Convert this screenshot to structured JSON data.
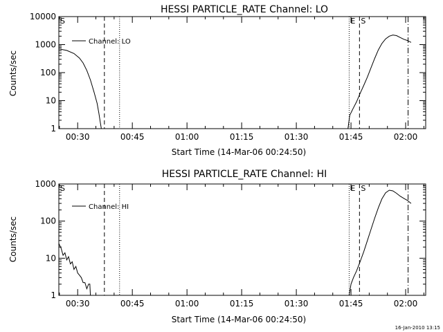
{
  "chart_data": [
    {
      "type": "line",
      "title": "HESSI PARTICLE_RATE Channel: LO",
      "xlabel": "Start Time (14-Mar-06 00:24:50)",
      "ylabel": "Counts/sec",
      "y_scale": "log",
      "ylim": [
        1,
        10000
      ],
      "xlim": [
        "00:24:50",
        "02:05:30"
      ],
      "x_tick_labels": [
        "00:30",
        "00:45",
        "01:00",
        "01:15",
        "01:30",
        "01:45",
        "02:00"
      ],
      "y_tick_labels": [
        "1",
        "10",
        "100",
        "1000",
        "10000"
      ],
      "legend": {
        "placement": "top-left",
        "entries": [
          "Channel: LO"
        ]
      },
      "markers": [
        {
          "time": "00:24:50",
          "style": "dashed",
          "label": "S"
        },
        {
          "time": "00:37:20",
          "style": "dashed",
          "label": ""
        },
        {
          "time": "00:41:30",
          "style": "dotted",
          "label": ""
        },
        {
          "time": "01:44:30",
          "style": "dotted",
          "label": "E"
        },
        {
          "time": "01:47:20",
          "style": "dashed",
          "label": "S"
        },
        {
          "time": "02:00:40",
          "style": "dashdot",
          "label": ""
        }
      ],
      "series": [
        {
          "name": "Channel: LO",
          "segments": [
            [
              [
                "00:24:50",
                700
              ],
              [
                "00:27:00",
                620
              ],
              [
                "00:29:00",
                480
              ],
              [
                "00:30:30",
                330
              ],
              [
                "00:31:30",
                220
              ],
              [
                "00:32:30",
                120
              ],
              [
                "00:33:30",
                55
              ],
              [
                "00:34:30",
                20
              ],
              [
                "00:35:20",
                8
              ],
              [
                "00:35:50",
                3.5
              ],
              [
                "00:36:10",
                1.8
              ],
              [
                "00:36:30",
                1
              ]
            ],
            [
              [
                "01:44:10",
                1
              ],
              [
                "01:44:40",
                3
              ],
              [
                "01:45:30",
                5
              ],
              [
                "01:46:30",
                9
              ],
              [
                "01:47:30",
                18
              ],
              [
                "01:48:30",
                35
              ],
              [
                "01:49:30",
                70
              ],
              [
                "01:50:30",
                150
              ],
              [
                "01:51:30",
                320
              ],
              [
                "01:52:30",
                650
              ],
              [
                "01:53:30",
                1100
              ],
              [
                "01:54:30",
                1600
              ],
              [
                "01:55:30",
                2000
              ],
              [
                "01:56:30",
                2200
              ],
              [
                "01:57:30",
                2100
              ],
              [
                "01:58:30",
                1800
              ],
              [
                "01:59:30",
                1550
              ],
              [
                "02:00:30",
                1400
              ],
              [
                "02:01:30",
                1200
              ]
            ]
          ]
        }
      ]
    },
    {
      "type": "line",
      "title": "HESSI PARTICLE_RATE Channel: HI",
      "xlabel": "Start Time (14-Mar-06 00:24:50)",
      "ylabel": "Counts/sec",
      "y_scale": "log",
      "ylim": [
        1,
        1000
      ],
      "xlim": [
        "00:24:50",
        "02:05:30"
      ],
      "x_tick_labels": [
        "00:30",
        "00:45",
        "01:00",
        "01:15",
        "01:30",
        "01:45",
        "02:00"
      ],
      "y_tick_labels": [
        "1",
        "10",
        "100",
        "1000"
      ],
      "legend": {
        "placement": "top-left",
        "entries": [
          "Channel: HI"
        ]
      },
      "markers": [
        {
          "time": "00:24:50",
          "style": "dashed",
          "label": "S"
        },
        {
          "time": "00:37:20",
          "style": "dashed",
          "label": ""
        },
        {
          "time": "00:41:30",
          "style": "dotted",
          "label": ""
        },
        {
          "time": "01:44:30",
          "style": "dotted",
          "label": "E"
        },
        {
          "time": "01:47:20",
          "style": "dashed",
          "label": "S"
        },
        {
          "time": "02:00:40",
          "style": "dashdot",
          "label": ""
        }
      ],
      "series": [
        {
          "name": "Channel: HI",
          "segments": [
            [
              [
                "00:24:50",
                25
              ],
              [
                "00:25:30",
                18
              ],
              [
                "00:26:00",
                12
              ],
              [
                "00:26:30",
                14
              ],
              [
                "00:27:00",
                9
              ],
              [
                "00:27:30",
                11
              ],
              [
                "00:28:00",
                7
              ],
              [
                "00:28:30",
                8
              ],
              [
                "00:29:00",
                5
              ],
              [
                "00:29:30",
                6
              ],
              [
                "00:30:00",
                4
              ],
              [
                "00:30:30",
                3.5
              ],
              [
                "00:31:00",
                3
              ],
              [
                "00:31:30",
                2.2
              ],
              [
                "00:32:00",
                2.2
              ],
              [
                "00:32:30",
                1.5
              ],
              [
                "00:33:00",
                2
              ],
              [
                "00:33:20",
                2
              ],
              [
                "00:33:30",
                1
              ]
            ],
            [
              [
                "01:44:30",
                1
              ],
              [
                "01:45:00",
                2
              ],
              [
                "01:45:40",
                3
              ],
              [
                "01:46:30",
                4.5
              ],
              [
                "01:47:30",
                8
              ],
              [
                "01:48:30",
                15
              ],
              [
                "01:49:30",
                30
              ],
              [
                "01:50:30",
                60
              ],
              [
                "01:51:30",
                120
              ],
              [
                "01:52:30",
                230
              ],
              [
                "01:53:30",
                400
              ],
              [
                "01:54:30",
                580
              ],
              [
                "01:55:30",
                680
              ],
              [
                "01:56:30",
                650
              ],
              [
                "01:57:30",
                560
              ],
              [
                "01:58:30",
                470
              ],
              [
                "01:59:30",
                410
              ],
              [
                "02:00:30",
                360
              ],
              [
                "02:01:30",
                300
              ]
            ]
          ]
        }
      ]
    }
  ],
  "footer_timestamp": "16-Jan-2010 13:15"
}
